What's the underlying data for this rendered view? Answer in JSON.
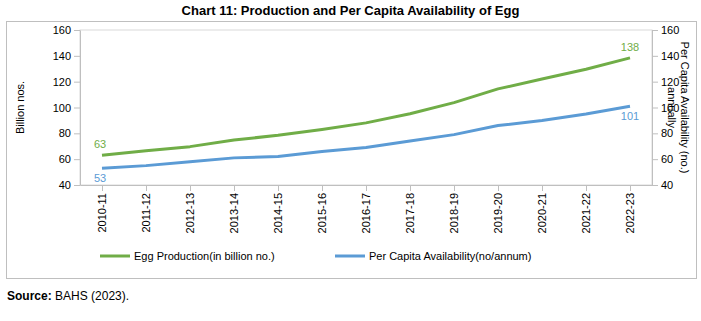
{
  "chart_data": {
    "type": "line",
    "title": "Chart 11: Production and Per Capita Availability of Egg",
    "y_label": "Billion nos.",
    "y2_label": "Per Capita Availability (no.) annually",
    "categories": [
      "2010-11",
      "2011-12",
      "2012-13",
      "2013-14",
      "2014-15",
      "2015-16",
      "2016-17",
      "2017-18",
      "2018-19",
      "2019-20",
      "2020-21",
      "2021-22",
      "2022-23"
    ],
    "series": [
      {
        "name": "Egg Production(in billion no.)",
        "color": "#70ad47",
        "values": [
          63,
          66.5,
          69.7,
          74.8,
          78.5,
          83,
          88.1,
          95.2,
          103.8,
          114.4,
          122,
          129.6,
          138.4
        ],
        "value_labels": [
          "63",
          null,
          null,
          null,
          null,
          null,
          null,
          null,
          null,
          null,
          null,
          null,
          "138"
        ]
      },
      {
        "name": "Per Capita Availability(no/annum)",
        "color": "#5b9bd5",
        "axis": "y2",
        "values": [
          53,
          55,
          58,
          61,
          62,
          66,
          69,
          74,
          79,
          86,
          90,
          95,
          101
        ],
        "value_labels": [
          "53",
          null,
          null,
          null,
          null,
          null,
          null,
          null,
          null,
          null,
          null,
          null,
          "101"
        ]
      }
    ],
    "ylim": [
      40,
      160
    ],
    "yticks": [
      40,
      60,
      80,
      100,
      120,
      140,
      160
    ],
    "y2lim": [
      40,
      160
    ],
    "y2ticks": [
      40,
      60,
      80,
      100,
      120,
      140,
      160
    ],
    "grid": false,
    "legend": "bottom",
    "data_labels": true,
    "source": "Source: BAHS (2023)."
  }
}
